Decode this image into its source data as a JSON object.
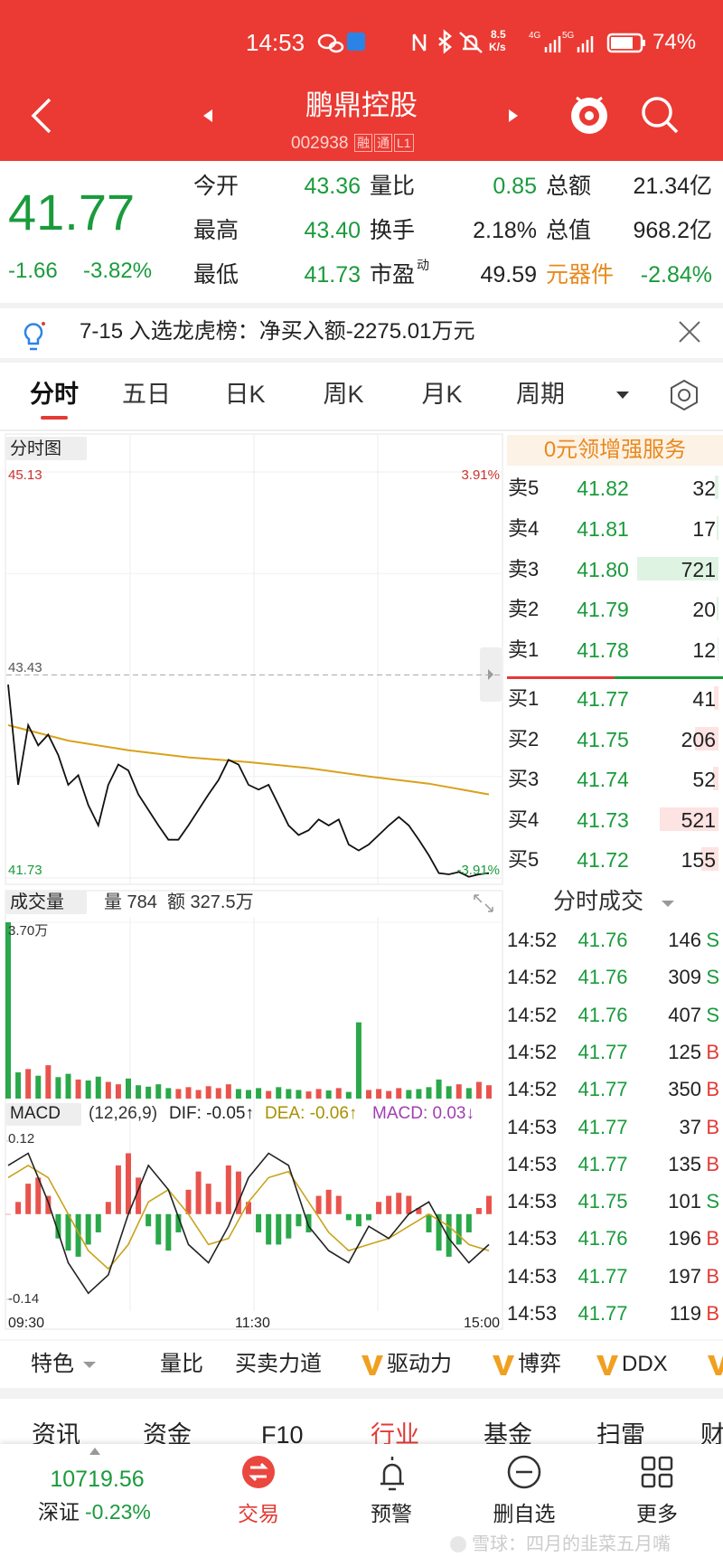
{
  "status_bar": {
    "time": "14:53",
    "net_speed": "8.5",
    "net_unit": "K/s",
    "signal_labels": [
      "4G",
      "5G"
    ],
    "battery": "74%"
  },
  "header": {
    "title": "鹏鼎控股",
    "code": "002938",
    "badges": [
      "融",
      "通",
      "L1"
    ]
  },
  "quote": {
    "price": "41.77",
    "change": "-1.66",
    "change_pct": "-3.82%",
    "stats": [
      {
        "label": "今开",
        "value": "43.36"
      },
      {
        "label": "量比",
        "value": "0.85"
      },
      {
        "label": "总额",
        "value": "21.34亿"
      },
      {
        "label": "最高",
        "value": "43.40"
      },
      {
        "label": "换手",
        "value": "2.18%"
      },
      {
        "label": "总值",
        "value": "968.2亿"
      },
      {
        "label": "最低",
        "value": "41.73"
      },
      {
        "label": "市盈",
        "sup": "动",
        "value": "49.59"
      },
      {
        "label": "元器件",
        "value": "-2.84%"
      }
    ]
  },
  "notice": {
    "text": "7-15 入选龙虎榜：净买入额-2275.01万元"
  },
  "tabs": [
    "分时",
    "五日",
    "日K",
    "周K",
    "月K",
    "周期"
  ],
  "intraday": {
    "label": "分时图",
    "price": {
      "ylim": [
        41.73,
        45.13
      ],
      "yticks": [
        45.13,
        43.43,
        41.73
      ],
      "pct_ticks": [
        {
          "value": 45.13,
          "label": "3.91%"
        },
        {
          "value": 41.73,
          "label": "-3.91%"
        }
      ],
      "values": [
        43.35,
        42.51,
        43.01,
        42.84,
        42.93,
        42.76,
        42.51,
        42.59,
        42.34,
        42.17,
        42.51,
        42.68,
        42.63,
        42.43,
        42.3,
        42.17,
        42.05,
        42.05,
        42.17,
        42.3,
        42.43,
        42.55,
        42.72,
        42.68,
        42.51,
        42.47,
        42.51,
        42.34,
        42.17,
        42.09,
        42.13,
        42.22,
        42.17,
        42.22,
        42.01,
        41.96,
        42.01,
        42.09,
        42.17,
        42.24,
        42.17,
        42.05,
        41.92,
        41.77,
        41.76,
        41.78,
        41.74,
        41.76,
        41.77
      ],
      "avg": [
        43.01,
        42.88,
        42.8,
        42.74,
        42.7,
        42.65,
        42.58,
        42.52,
        42.43
      ]
    },
    "volume": {
      "label": "成交量",
      "info": [
        "量 784",
        "额 327.5万"
      ],
      "ylim": [
        0,
        3.7
      ],
      "yticks": [
        {
          "value": 3.7,
          "label": "3.70万"
        }
      ],
      "values": [
        3.7,
        0.55,
        0.62,
        0.48,
        0.7,
        0.45,
        0.52,
        0.4,
        0.38,
        0.46,
        0.35,
        0.3,
        0.42,
        0.28,
        0.25,
        0.3,
        0.22,
        0.2,
        0.24,
        0.18,
        0.26,
        0.22,
        0.3,
        0.2,
        0.18,
        0.22,
        0.16,
        0.24,
        0.2,
        0.18,
        0.15,
        0.2,
        0.17,
        0.22,
        0.14,
        1.6,
        0.18,
        0.2,
        0.16,
        0.22,
        0.18,
        0.2,
        0.24,
        0.4,
        0.26,
        0.3,
        0.22,
        0.35,
        0.28
      ]
    },
    "macd": {
      "label": "MACD",
      "params": "(12,26,9)",
      "dif_label": "DIF: -0.05↑",
      "dea_label": "DEA: -0.06↑",
      "macd_label": "MACD: 0.03↓",
      "ylim": [
        -0.14,
        0.12
      ],
      "yticks": [
        0.12,
        -0.14
      ],
      "histogram": [
        0,
        0.02,
        0.05,
        0.06,
        0.03,
        -0.04,
        -0.06,
        -0.07,
        -0.05,
        -0.03,
        0.02,
        0.08,
        0.1,
        0.06,
        -0.02,
        -0.05,
        -0.06,
        -0.03,
        0.04,
        0.07,
        0.05,
        0.02,
        0.08,
        0.07,
        0.02,
        -0.03,
        -0.05,
        -0.05,
        -0.04,
        -0.02,
        -0.03,
        0.03,
        0.04,
        0.03,
        -0.01,
        -0.02,
        -0.01,
        0.02,
        0.03,
        0.035,
        0.03,
        0.01,
        -0.03,
        -0.06,
        -0.07,
        -0.05,
        -0.03,
        0.01,
        0.03
      ],
      "dif": [
        0.08,
        0.1,
        0.02,
        -0.08,
        -0.13,
        -0.1,
        0,
        0.08,
        0.04,
        -0.05,
        -0.08,
        -0.02,
        0.06,
        0.1,
        0.08,
        -0.02,
        -0.06,
        -0.08,
        -0.02,
        -0.04,
        0,
        0.02,
        -0.04,
        -0.08,
        -0.05
      ],
      "dea": [
        0.06,
        0.08,
        0.06,
        0,
        -0.06,
        -0.09,
        -0.05,
        0.02,
        0.04,
        0,
        -0.05,
        -0.04,
        0.02,
        0.06,
        0.07,
        0.02,
        -0.03,
        -0.06,
        -0.05,
        -0.04,
        -0.02,
        0,
        -0.02,
        -0.05,
        -0.06
      ]
    },
    "time_labels": [
      "09:30",
      "11:30",
      "15:00"
    ]
  },
  "order_book": {
    "promo": "0元领增强服务",
    "asks": [
      {
        "label": "卖5",
        "price": "41.82",
        "volume": 32
      },
      {
        "label": "卖4",
        "price": "41.81",
        "volume": 17
      },
      {
        "label": "卖3",
        "price": "41.80",
        "volume": 721
      },
      {
        "label": "卖2",
        "price": "41.79",
        "volume": 20
      },
      {
        "label": "卖1",
        "price": "41.78",
        "volume": 12
      }
    ],
    "bids": [
      {
        "label": "买1",
        "price": "41.77",
        "volume": 41
      },
      {
        "label": "买2",
        "price": "41.75",
        "volume": 206
      },
      {
        "label": "买3",
        "price": "41.74",
        "volume": 52
      },
      {
        "label": "买4",
        "price": "41.73",
        "volume": 521
      },
      {
        "label": "买5",
        "price": "41.72",
        "volume": 155
      }
    ]
  },
  "trades": {
    "title": "分时成交",
    "rows": [
      {
        "time": "14:52",
        "price": "41.76",
        "volume": "146",
        "side": "S"
      },
      {
        "time": "14:52",
        "price": "41.76",
        "volume": "309",
        "side": "S"
      },
      {
        "time": "14:52",
        "price": "41.76",
        "volume": "407",
        "side": "S"
      },
      {
        "time": "14:52",
        "price": "41.77",
        "volume": "125",
        "side": "B"
      },
      {
        "time": "14:52",
        "price": "41.77",
        "volume": "350",
        "side": "B"
      },
      {
        "time": "14:53",
        "price": "41.77",
        "volume": "37",
        "side": "B"
      },
      {
        "time": "14:53",
        "price": "41.77",
        "volume": "135",
        "side": "B"
      },
      {
        "time": "14:53",
        "price": "41.75",
        "volume": "101",
        "side": "S"
      },
      {
        "time": "14:53",
        "price": "41.76",
        "volume": "196",
        "side": "B"
      },
      {
        "time": "14:53",
        "price": "41.77",
        "volume": "197",
        "side": "B"
      },
      {
        "time": "14:53",
        "price": "41.77",
        "volume": "119",
        "side": "B"
      }
    ]
  },
  "toolbar": [
    "特色",
    "量比",
    "买卖力道",
    "驱动力",
    "博弈",
    "DDX"
  ],
  "sections": [
    "资讯",
    "资金",
    "F10",
    "行业",
    "基金",
    "扫雷",
    "财"
  ],
  "bottom_nav": {
    "index_value": "10719.56",
    "index_name": "深证",
    "index_change": "-0.23%",
    "items": [
      "交易",
      "预警",
      "删自选",
      "更多"
    ]
  },
  "watermark": "雪球：四月的韭菜五月嘴"
}
